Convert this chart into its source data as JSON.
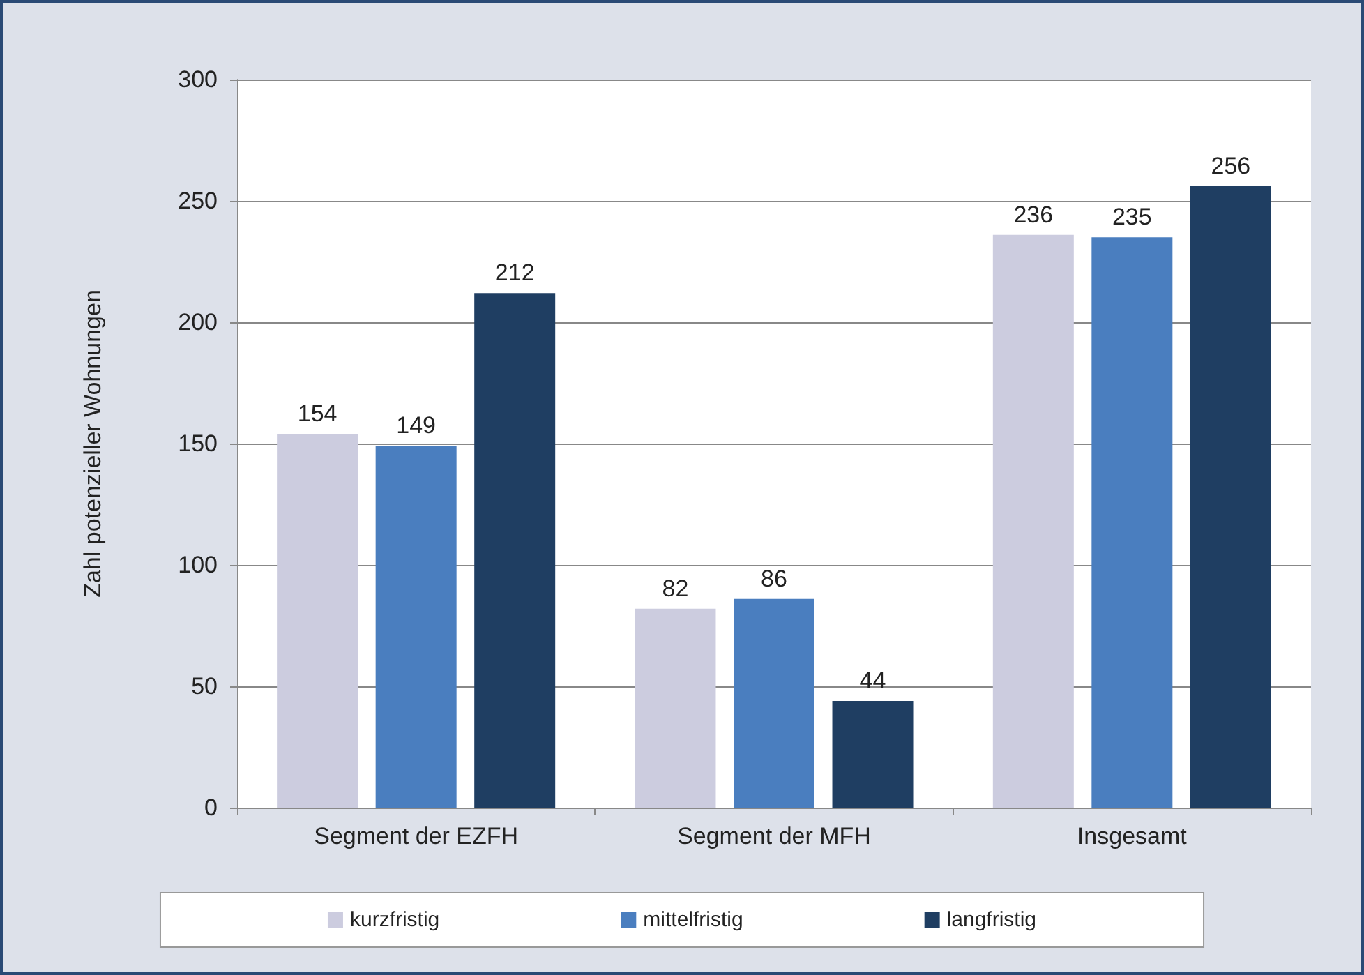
{
  "chart_data": {
    "type": "bar",
    "ylabel": "Zahl potenzieller Wohnungen",
    "categories": [
      "Segment der EZFH",
      "Segment der MFH",
      "Insgesamt"
    ],
    "series": [
      {
        "name": "kurzfristig",
        "color": "#ccccdf",
        "values": [
          154,
          82,
          236
        ]
      },
      {
        "name": "mittelfristig",
        "color": "#4a7ebf",
        "values": [
          149,
          86,
          235
        ]
      },
      {
        "name": "langfristig",
        "color": "#1f3e62",
        "values": [
          212,
          44,
          256
        ]
      }
    ],
    "ylim": [
      0,
      300
    ],
    "yticks": [
      0,
      50,
      100,
      150,
      200,
      250,
      300
    ],
    "grid": "y",
    "legend": "bottom",
    "data_labels": true
  }
}
